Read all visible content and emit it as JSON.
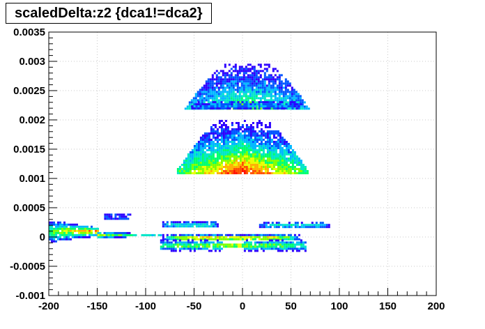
{
  "chart_data": {
    "type": "heatmap",
    "title": "scaledDelta:z2 {dca1!=dca2}",
    "xlabel": "",
    "ylabel": "",
    "xlim": [
      -200,
      200
    ],
    "ylim": [
      -0.001,
      0.0035
    ],
    "grid": true,
    "x_ticks": [
      -200,
      -150,
      -100,
      -50,
      0,
      50,
      100,
      150,
      200
    ],
    "x_tick_labels": [
      "-200",
      "-150",
      "-100",
      "-50",
      "0",
      "50",
      "100",
      "150",
      "200"
    ],
    "y_ticks": [
      -0.001,
      -0.0005,
      0,
      0.0005,
      0.001,
      0.0015,
      0.002,
      0.0025,
      0.003,
      0.0035
    ],
    "y_tick_labels": [
      "-0.001",
      "-0.0005",
      "0",
      "0.0005",
      "0.001",
      "0.0015",
      "0.002",
      "0.0025",
      "0.003",
      "0.0035"
    ],
    "palette": [
      "#2b00ff",
      "#0055ff",
      "#00b7ff",
      "#00e6c8",
      "#00ff6e",
      "#7dff00",
      "#e9ff00",
      "#ffb000",
      "#ff5000",
      "#ff1400"
    ],
    "regions": [
      {
        "x0": -62,
        "x1": 70,
        "y0": 0.00218,
        "y1": 0.00296,
        "peak": 0.6,
        "shape": "fan",
        "max_level": 5
      },
      {
        "x0": -55,
        "x1": 60,
        "y0": 0.0022,
        "y1": 0.00232,
        "peak": 0.25,
        "shape": "band",
        "max_level": 2
      },
      {
        "x0": -72,
        "x1": 70,
        "y0": 0.00108,
        "y1": 0.002,
        "peak": 1.0,
        "shape": "fan",
        "max_level": 9
      },
      {
        "x0": -200,
        "x1": -150,
        "y0": -8e-05,
        "y1": 0.0003,
        "peak": 0.9,
        "shape": "wedge",
        "max_level": 9
      },
      {
        "x0": -150,
        "x1": -85,
        "y0": -2e-05,
        "y1": 0.00012,
        "peak": 0.6,
        "shape": "taper",
        "max_level": 6
      },
      {
        "x0": -145,
        "x1": -115,
        "y0": 0.0003,
        "y1": 0.0004,
        "peak": 0.15,
        "shape": "band",
        "max_level": 1
      },
      {
        "x0": -85,
        "x1": 60,
        "y0": -5e-05,
        "y1": 5e-05,
        "peak": 0.85,
        "shape": "band",
        "max_level": 9
      },
      {
        "x0": -85,
        "x1": -25,
        "y0": 0.00017,
        "y1": 0.00027,
        "peak": 0.4,
        "shape": "band",
        "max_level": 4
      },
      {
        "x0": 15,
        "x1": 90,
        "y0": 0.00017,
        "y1": 0.00026,
        "peak": 0.4,
        "shape": "band",
        "max_level": 4
      },
      {
        "x0": -85,
        "x1": 65,
        "y0": -0.00022,
        "y1": -4e-05,
        "peak": 0.7,
        "shape": "butterfly",
        "max_level": 6
      }
    ]
  }
}
